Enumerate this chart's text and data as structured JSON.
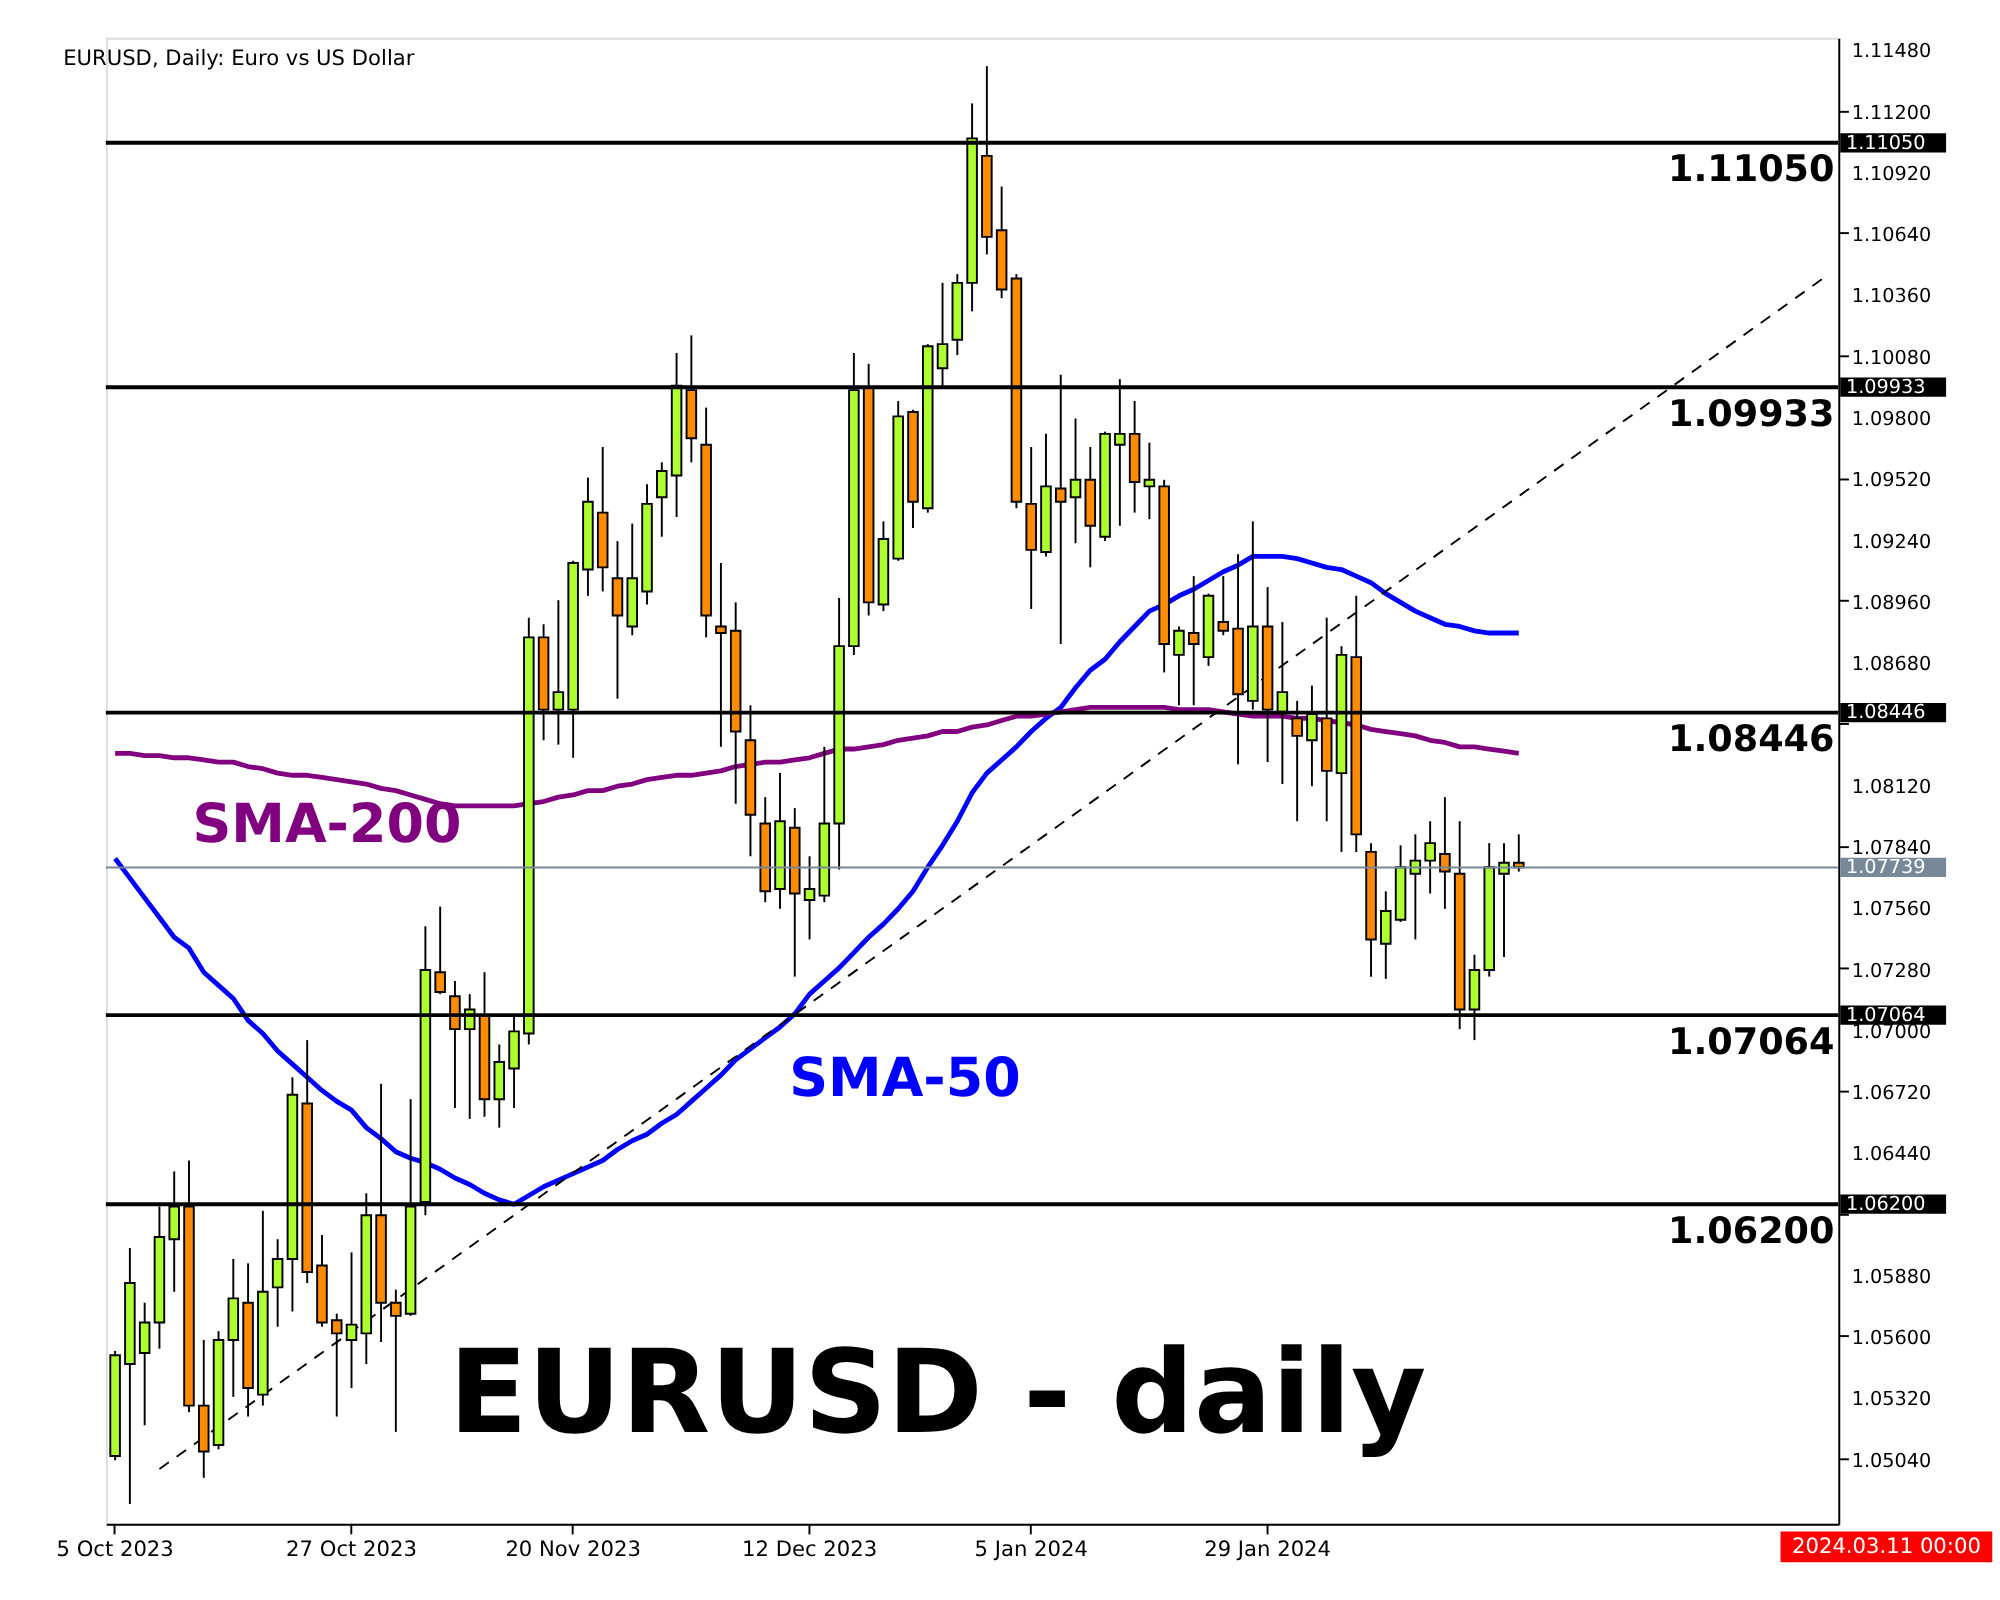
{
  "chart_data": {
    "type": "candlestick",
    "title": "EURUSD, Daily:  Euro vs US Dollar",
    "categories": [
      "5 Oct 2023",
      null,
      null,
      null,
      null,
      null,
      null,
      null,
      null,
      null,
      null,
      null,
      null,
      null,
      null,
      null,
      "27 Oct 2023",
      null,
      null,
      null,
      null,
      null,
      null,
      null,
      null,
      null,
      null,
      null,
      null,
      null,
      null,
      "20 Nov 2023",
      null,
      null,
      null,
      null,
      null,
      null,
      null,
      null,
      null,
      null,
      null,
      null,
      null,
      null,
      null,
      "12 Dec 2023",
      null,
      null,
      null,
      null,
      null,
      null,
      null,
      null,
      null,
      null,
      null,
      null,
      null,
      null,
      "5 Jan 2024",
      null,
      null,
      null,
      null,
      null,
      null,
      null,
      null,
      null,
      null,
      null,
      null,
      null,
      null,
      null,
      "29 Jan 2024",
      null,
      null,
      null,
      null,
      null,
      null,
      null,
      null,
      null,
      null,
      null,
      null,
      null,
      null,
      null,
      null,
      null,
      null,
      null,
      null,
      null,
      null,
      null,
      null,
      null,
      null,
      null,
      null,
      null,
      null,
      null,
      null,
      null,
      null,
      null,
      null,
      null,
      null
    ],
    "ohlc": [
      [
        1.0505,
        1.0553,
        1.0503,
        1.0551
      ],
      [
        1.0547,
        1.06,
        1.0483,
        1.0584
      ],
      [
        1.0552,
        1.0575,
        1.0519,
        1.0566
      ],
      [
        1.0566,
        1.0619,
        1.0554,
        1.0605
      ],
      [
        1.0604,
        1.0635,
        1.058,
        1.0619
      ],
      [
        1.0619,
        1.064,
        1.0525,
        1.0528
      ],
      [
        1.0528,
        1.0558,
        1.0495,
        1.0507
      ],
      [
        1.051,
        1.0562,
        1.0508,
        1.0558
      ],
      [
        1.0558,
        1.0595,
        1.0532,
        1.0577
      ],
      [
        1.0575,
        1.0593,
        1.0523,
        1.0536
      ],
      [
        1.0533,
        1.0617,
        1.0528,
        1.058
      ],
      [
        1.0582,
        1.0604,
        1.0564,
        1.0595
      ],
      [
        1.0595,
        1.0678,
        1.0571,
        1.067
      ],
      [
        1.0666,
        1.0695,
        1.0584,
        1.0589
      ],
      [
        1.0592,
        1.0606,
        1.0564,
        1.0566
      ],
      [
        1.0567,
        1.057,
        1.0523,
        1.0561
      ],
      [
        1.0558,
        1.0598,
        1.0536,
        1.0565
      ],
      [
        1.0561,
        1.0625,
        1.0547,
        1.0615
      ],
      [
        1.0615,
        1.0675,
        1.0557,
        1.0575
      ],
      [
        1.0575,
        1.0581,
        1.0516,
        1.0569
      ],
      [
        1.057,
        1.0668,
        1.0569,
        1.0619
      ],
      [
        1.0621,
        1.0747,
        1.0615,
        1.0727
      ],
      [
        1.0726,
        1.0756,
        1.0716,
        1.0717
      ],
      [
        1.0715,
        1.0722,
        1.0664,
        1.07
      ],
      [
        1.07,
        1.0716,
        1.0659,
        1.0709
      ],
      [
        1.0706,
        1.0726,
        1.066,
        1.0668
      ],
      [
        1.0668,
        1.0693,
        1.0655,
        1.0685
      ],
      [
        1.0682,
        1.0706,
        1.0664,
        1.0699
      ],
      [
        1.0698,
        1.0888,
        1.0693,
        1.0879
      ],
      [
        1.0879,
        1.0885,
        1.0832,
        1.0846
      ],
      [
        1.0846,
        1.0896,
        1.083,
        1.0854
      ],
      [
        1.0846,
        1.0914,
        1.0824,
        1.0913
      ],
      [
        1.091,
        1.0952,
        1.0898,
        1.0941
      ],
      [
        1.0936,
        1.0966,
        1.09,
        1.0911
      ],
      [
        1.0906,
        1.0923,
        1.0851,
        1.0889
      ],
      [
        1.0884,
        1.0931,
        1.088,
        1.0906
      ],
      [
        1.09,
        1.0949,
        1.0894,
        1.094
      ],
      [
        1.0943,
        1.0959,
        1.0925,
        1.0955
      ],
      [
        1.0953,
        1.1009,
        1.0934,
        1.0994
      ],
      [
        1.0992,
        1.1017,
        1.0959,
        1.097
      ],
      [
        1.0967,
        1.0984,
        1.0879,
        1.0889
      ],
      [
        1.0884,
        1.0913,
        1.0829,
        1.0881
      ],
      [
        1.0882,
        1.0895,
        1.0803,
        1.0836
      ],
      [
        1.0832,
        1.0848,
        1.0779,
        1.0798
      ],
      [
        1.0794,
        1.0806,
        1.0758,
        1.0763
      ],
      [
        1.0764,
        1.0817,
        1.0755,
        1.0795
      ],
      [
        1.0792,
        1.0801,
        1.0724,
        1.0762
      ],
      [
        1.0759,
        1.0779,
        1.0741,
        1.0764
      ],
      [
        1.0761,
        1.0829,
        1.0758,
        1.0794
      ],
      [
        1.0794,
        1.0897,
        1.0773,
        1.0875
      ],
      [
        1.0875,
        1.1009,
        1.0871,
        1.0992
      ],
      [
        1.0993,
        1.1004,
        1.0889,
        1.0895
      ],
      [
        1.0894,
        1.0932,
        1.0891,
        1.0924
      ],
      [
        1.0915,
        1.0987,
        1.0914,
        1.098
      ],
      [
        1.0982,
        1.0983,
        1.0929,
        1.0941
      ],
      [
        1.0938,
        1.1013,
        1.0936,
        1.1012
      ],
      [
        1.1002,
        1.1041,
        1.0993,
        1.1013
      ],
      [
        1.1015,
        1.1045,
        1.1008,
        1.1041
      ],
      [
        1.1041,
        1.1123,
        1.1028,
        1.1107
      ],
      [
        1.1099,
        1.114,
        1.1054,
        1.1062
      ],
      [
        1.1065,
        1.1085,
        1.1034,
        1.1038
      ],
      [
        1.1043,
        1.1045,
        1.0938,
        1.0941
      ],
      [
        1.094,
        1.0966,
        1.0892,
        1.0919
      ],
      [
        1.0918,
        1.0972,
        1.0916,
        1.0948
      ],
      [
        1.0947,
        1.0999,
        1.0876,
        1.0941
      ],
      [
        1.0943,
        1.0979,
        1.0922,
        1.0951
      ],
      [
        1.0951,
        1.0966,
        1.0911,
        1.093
      ],
      [
        1.0925,
        1.0973,
        1.0923,
        1.0972
      ],
      [
        1.0967,
        1.0997,
        1.093,
        1.0972
      ],
      [
        1.0972,
        1.0987,
        1.0936,
        1.095
      ],
      [
        1.0948,
        1.0968,
        1.0933,
        1.0951
      ],
      [
        1.0948,
        1.0951,
        1.0863,
        1.0876
      ],
      [
        1.0871,
        1.0884,
        1.0848,
        1.0882
      ],
      [
        1.0881,
        1.0907,
        1.0848,
        1.0876
      ],
      [
        1.087,
        1.0899,
        1.0866,
        1.0898
      ],
      [
        1.0886,
        1.0907,
        1.088,
        1.0882
      ],
      [
        1.0883,
        1.0917,
        1.0821,
        1.0853
      ],
      [
        1.085,
        1.0932,
        1.0846,
        1.0884
      ],
      [
        1.0884,
        1.0902,
        1.0822,
        1.0846
      ],
      [
        1.0845,
        1.0886,
        1.0812,
        1.0854
      ],
      [
        1.0842,
        1.085,
        1.0795,
        1.0834
      ],
      [
        1.0832,
        1.0857,
        1.0811,
        1.0844
      ],
      [
        1.0842,
        1.0888,
        1.0795,
        1.0818
      ],
      [
        1.0817,
        1.0875,
        1.0781,
        1.0871
      ],
      [
        1.087,
        1.0898,
        1.0781,
        1.0789
      ],
      [
        1.0781,
        1.0785,
        1.0724,
        1.0741
      ],
      [
        1.0739,
        1.0763,
        1.0723,
        1.0754
      ],
      [
        1.075,
        1.0784,
        1.0749,
        1.0774
      ],
      [
        1.0771,
        1.0789,
        1.0741,
        1.0777
      ],
      [
        1.0777,
        1.0795,
        1.0762,
        1.0785
      ],
      [
        1.078,
        1.0806,
        1.0755,
        1.0772
      ],
      [
        1.0771,
        1.0795,
        1.07,
        1.0709
      ],
      [
        1.0709,
        1.0734,
        1.0695,
        1.0727
      ],
      [
        1.0727,
        1.0785,
        1.0724,
        1.0774
      ],
      [
        1.0771,
        1.0785,
        1.0733,
        1.0776
      ],
      [
        1.0776,
        1.0789,
        1.0772,
        1.0774
      ],
      null,
      null,
      null,
      null,
      null,
      null,
      null,
      null,
      null,
      null,
      null,
      null,
      null,
      null,
      null,
      null,
      null,
      null,
      null,
      null,
      null
    ],
    "colors": [
      "#adff2f",
      "#adff2f",
      "#adff2f",
      "#adff2f",
      "#adff2f",
      "#ff8c00",
      "#ff8c00",
      "#adff2f",
      "#adff2f",
      "#ff8c00",
      "#adff2f",
      "#adff2f",
      "#adff2f",
      "#ff8c00",
      "#ff8c00",
      "#ff8c00",
      "#adff2f",
      "#adff2f",
      "#ff8c00",
      "#ff8c00",
      "#adff2f",
      "#adff2f",
      "#ff8c00",
      "#ff8c00",
      "#adff2f",
      "#ff8c00",
      "#adff2f",
      "#adff2f",
      "#adff2f",
      "#ff8c00",
      "#adff2f",
      "#adff2f",
      "#adff2f",
      "#ff8c00",
      "#ff8c00",
      "#adff2f",
      "#adff2f",
      "#adff2f",
      "#adff2f",
      "#ff8c00",
      "#ff8c00",
      "#ff8c00",
      "#ff8c00",
      "#ff8c00",
      "#ff8c00",
      "#adff2f",
      "#ff8c00",
      "#adff2f",
      "#adff2f",
      "#adff2f",
      "#adff2f",
      "#ff8c00",
      "#adff2f",
      "#adff2f",
      "#ff8c00",
      "#adff2f",
      "#adff2f",
      "#adff2f",
      "#adff2f",
      "#ff8c00",
      "#ff8c00",
      "#ff8c00",
      "#ff8c00",
      "#adff2f",
      "#ff8c00",
      "#adff2f",
      "#ff8c00",
      "#adff2f",
      "#adff2f",
      "#ff8c00",
      "#adff2f",
      "#ff8c00",
      "#adff2f",
      "#ff8c00",
      "#adff2f",
      "#ff8c00",
      "#ff8c00",
      "#adff2f",
      "#ff8c00",
      "#adff2f",
      "#ff8c00",
      "#adff2f",
      "#ff8c00",
      "#adff2f",
      "#ff8c00",
      "#ff8c00",
      "#adff2f",
      "#adff2f",
      "#adff2f",
      "#adff2f",
      "#ff8c00",
      "#ff8c00",
      "#adff2f",
      "#adff2f",
      "#adff2f",
      "#ff8c00",
      null,
      null,
      null,
      null,
      null,
      null,
      null,
      null,
      null,
      null,
      null,
      null,
      null,
      null,
      null,
      null,
      null,
      null,
      null,
      null,
      null
    ],
    "series": [
      {
        "name": "SMA-50",
        "type": "line",
        "color": "#0000ff",
        "line_style": "solid",
        "values": [
          1.0778,
          1.0769,
          1.076,
          1.0751,
          1.0742,
          1.0737,
          1.0726,
          1.072,
          1.0714,
          1.0704,
          1.0698,
          1.069,
          1.0684,
          1.0678,
          1.0672,
          1.0667,
          1.0663,
          1.0655,
          1.065,
          1.0644,
          1.0641,
          1.0639,
          1.0636,
          1.0632,
          1.0629,
          1.0625,
          1.0622,
          1.062,
          1.0624,
          1.0628,
          1.0631,
          1.0634,
          1.0637,
          1.064,
          1.0645,
          1.0649,
          1.0652,
          1.0657,
          1.0661,
          1.0667,
          1.0673,
          1.0679,
          1.0686,
          1.0691,
          1.0696,
          1.0701,
          1.0707,
          1.0716,
          1.0722,
          1.0728,
          1.0735,
          1.0742,
          1.0748,
          1.0755,
          1.0763,
          1.0774,
          1.0784,
          1.0795,
          1.0808,
          1.0817,
          1.0823,
          1.0829,
          1.0836,
          1.0842,
          1.0847,
          1.0856,
          1.0864,
          1.0869,
          1.0877,
          1.0884,
          1.0891,
          1.0894,
          1.0898,
          1.0901,
          1.0905,
          1.0909,
          1.0912,
          1.0916,
          1.0916,
          1.0916,
          1.0915,
          1.0913,
          1.0911,
          1.091,
          1.0907,
          1.0904,
          1.0899,
          1.0895,
          1.0891,
          1.0888,
          1.0885,
          1.0884,
          1.0882,
          1.0881,
          1.0881,
          1.0881,
          null,
          null,
          null,
          null,
          null,
          null,
          null,
          null,
          null,
          null,
          null,
          null,
          null,
          null,
          null,
          null,
          null,
          null,
          null,
          null,
          null
        ]
      },
      {
        "name": "SMA-200",
        "type": "line",
        "color": "#800080",
        "line_style": "solid",
        "values": [
          1.0826,
          1.0826,
          1.0825,
          1.0825,
          1.0824,
          1.0824,
          1.0823,
          1.0822,
          1.0822,
          1.082,
          1.0819,
          1.0817,
          1.0816,
          1.0816,
          1.0815,
          1.0814,
          1.0813,
          1.0812,
          1.081,
          1.0809,
          1.0807,
          1.0805,
          1.0803,
          1.0802,
          1.0802,
          1.0802,
          1.0802,
          1.0802,
          1.0803,
          1.0804,
          1.0806,
          1.0807,
          1.0809,
          1.0809,
          1.0811,
          1.0812,
          1.0814,
          1.0815,
          1.0816,
          1.0816,
          1.0817,
          1.0818,
          1.082,
          1.0821,
          1.0822,
          1.0822,
          1.0823,
          1.0824,
          1.0826,
          1.0828,
          1.0828,
          1.0829,
          1.083,
          1.0832,
          1.0833,
          1.0834,
          1.0836,
          1.0836,
          1.0838,
          1.0839,
          1.0841,
          1.0843,
          1.0843,
          1.0844,
          1.0845,
          1.0846,
          1.0847,
          1.0847,
          1.0847,
          1.0847,
          1.0847,
          1.0847,
          1.0846,
          1.0846,
          1.0846,
          1.0845,
          1.0844,
          1.0843,
          1.0843,
          1.0843,
          1.0842,
          1.0842,
          1.0841,
          1.084,
          1.0839,
          1.0837,
          1.0836,
          1.0835,
          1.0834,
          1.0832,
          1.0831,
          1.0829,
          1.0829,
          1.0828,
          1.0827,
          1.0826,
          null,
          null,
          null,
          null,
          null,
          null,
          null,
          null,
          null,
          null,
          null,
          null,
          null,
          null,
          null,
          null,
          null,
          null,
          null,
          null,
          null
        ]
      },
      {
        "type": "line",
        "color": "#000000",
        "line_style": "dashed",
        "values": [
          null,
          null,
          null,
          1.0499,
          null,
          null,
          null,
          null,
          null,
          null,
          null,
          null,
          null,
          null,
          null,
          null,
          null,
          null,
          null,
          null,
          null,
          null,
          null,
          null,
          null,
          null,
          null,
          null,
          null,
          null,
          null,
          null,
          null,
          null,
          null,
          null,
          null,
          null,
          null,
          null,
          null,
          null,
          null,
          null,
          null,
          null,
          null,
          null,
          null,
          null,
          null,
          null,
          null,
          null,
          null,
          null,
          null,
          null,
          null,
          null,
          null,
          null,
          null,
          null,
          null,
          null,
          null,
          null,
          null,
          null,
          null,
          null,
          null,
          null,
          null,
          null,
          null,
          null,
          null,
          null,
          null,
          null,
          null,
          null,
          null,
          null,
          null,
          null,
          null,
          null,
          null,
          null,
          null,
          null,
          null,
          null,
          null,
          null,
          null,
          null,
          null,
          null,
          null,
          null,
          null,
          null,
          null,
          null,
          null,
          null,
          null,
          null,
          null,
          null,
          null,
          null,
          1.1045
        ]
      }
    ],
    "ylim": [
      1.0474,
      1.1153
    ],
    "yticks": [
      {
        "value": 1.0504,
        "label": "1.05040"
      },
      {
        "value": 1.0532,
        "label": "1.05320"
      },
      {
        "value": 1.056,
        "label": "1.05600"
      },
      {
        "value": 1.0588,
        "label": "1.05880"
      },
      {
        "value": 1.0616,
        "label": null
      },
      {
        "value": 1.0644,
        "label": "1.06440"
      },
      {
        "value": 1.0672,
        "label": "1.06720"
      },
      {
        "value": 1.07,
        "label": "1.07000"
      },
      {
        "value": 1.0728,
        "label": "1.07280"
      },
      {
        "value": 1.0756,
        "label": "1.07560"
      },
      {
        "value": 1.0784,
        "label": "1.07840"
      },
      {
        "value": 1.0812,
        "label": "1.08120"
      },
      {
        "value": 1.084,
        "label": null
      },
      {
        "value": 1.0868,
        "label": "1.08680"
      },
      {
        "value": 1.0896,
        "label": "1.08960"
      },
      {
        "value": 1.0924,
        "label": "1.09240"
      },
      {
        "value": 1.0952,
        "label": "1.09520"
      },
      {
        "value": 1.098,
        "label": "1.09800"
      },
      {
        "value": 1.1008,
        "label": "1.10080"
      },
      {
        "value": 1.1036,
        "label": "1.10360"
      },
      {
        "value": 1.1064,
        "label": "1.10640"
      },
      {
        "value": 1.1092,
        "label": "1.10920"
      },
      {
        "value": 1.112,
        "label": "1.11200"
      },
      {
        "value": 1.1148,
        "label": "1.11480"
      }
    ],
    "ref_lines": [
      {
        "axis": "y",
        "value": 1.1105,
        "label": "1.11050"
      },
      {
        "axis": "y",
        "value": 1.09933,
        "label": "1.09933"
      },
      {
        "axis": "y",
        "value": 1.08446,
        "label": "1.08446"
      },
      {
        "axis": "y",
        "value": 1.07064,
        "label": "1.07064"
      },
      {
        "axis": "y",
        "value": 1.062,
        "label": "1.06200"
      },
      {
        "axis": "y",
        "value": 1.07739,
        "label": "1.07739",
        "color": "#778899"
      }
    ],
    "annotations": [
      "EURUSD - daily",
      "2024.03.11 00:00"
    ],
    "grid": false
  }
}
